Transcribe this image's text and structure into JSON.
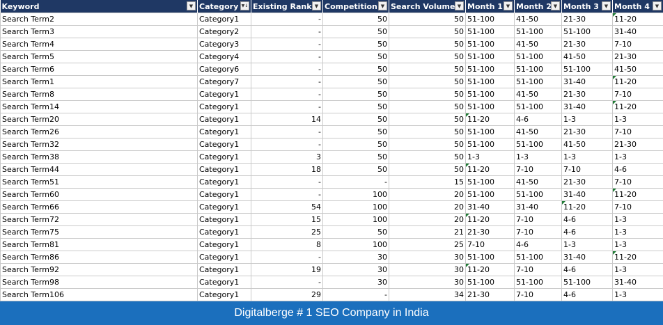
{
  "columns": [
    "Keyword",
    "Category",
    "Existing Rank",
    "Competition",
    "Search Volume",
    "Month 1",
    "Month 2",
    "Month 3",
    "Month 4"
  ],
  "numeric_columns": [
    2,
    3,
    4
  ],
  "sort_column": 1,
  "rows": [
    [
      "Search Term2",
      "Category1",
      "-",
      "50",
      "50",
      "51-100",
      "41-50",
      "21-30",
      "11-20"
    ],
    [
      "Search Term3",
      "Category2",
      "-",
      "50",
      "50",
      "51-100",
      "51-100",
      "51-100",
      "31-40"
    ],
    [
      "Search Term4",
      "Category3",
      "-",
      "50",
      "50",
      "51-100",
      "41-50",
      "21-30",
      "7-10"
    ],
    [
      "Search Term5",
      "Category4",
      "-",
      "50",
      "50",
      "51-100",
      "51-100",
      "41-50",
      " 21-30"
    ],
    [
      "Search Term6",
      "Category6",
      "-",
      "50",
      "50",
      "51-100",
      "51-100",
      "51-100",
      "41-50"
    ],
    [
      "Search Term1",
      "Category7",
      "-",
      "50",
      "50",
      "51-100",
      "51-100",
      "31-40",
      "11-20"
    ],
    [
      "Search Term8",
      "Category1",
      "-",
      "50",
      "50",
      "51-100",
      "41-50",
      "21-30",
      "7-10"
    ],
    [
      "Search Term14",
      "Category1",
      "-",
      "50",
      "50",
      "51-100",
      "51-100",
      "31-40",
      "11-20"
    ],
    [
      "Search Term20",
      "Category1",
      "14",
      "50",
      "50",
      "11-20",
      "4-6",
      "1-3",
      "1-3"
    ],
    [
      "Search Term26",
      "Category1",
      "-",
      "50",
      "50",
      "51-100",
      "41-50",
      "21-30",
      "7-10"
    ],
    [
      "Search Term32",
      "Category1",
      "-",
      "50",
      "50",
      "51-100",
      "51-100",
      "41-50",
      " 21-30"
    ],
    [
      "Search Term38",
      "Category1",
      "3",
      "50",
      "50",
      "1-3",
      "1-3",
      "1-3",
      "1-3"
    ],
    [
      "Search Term44",
      "Category1",
      "18",
      "50",
      "50",
      " 11-20",
      " 7-10",
      " 7-10",
      " 4-6"
    ],
    [
      "Search Term51",
      "Category1",
      "-",
      "-",
      "15",
      "51-100",
      "41-50",
      "21-30",
      "7-10"
    ],
    [
      "Search Term60",
      "Category1",
      "-",
      "100",
      "20",
      "51-100",
      "51-100",
      "31-40",
      "11-20"
    ],
    [
      "Search Term66",
      "Category1",
      "54",
      "100",
      "20",
      "31-40",
      "31-40",
      "11-20",
      "7-10"
    ],
    [
      "Search Term72",
      "Category1",
      "15",
      "100",
      "20",
      "11-20",
      "7-10",
      "4-6",
      "1-3"
    ],
    [
      "Search Term75",
      "Category1",
      "25",
      "50",
      "21",
      "21-30",
      "7-10",
      "4-6",
      "1-3"
    ],
    [
      "Search Term81",
      "Category1",
      "8",
      "100",
      "25",
      "7-10",
      "4-6",
      "1-3",
      "1-3"
    ],
    [
      "Search Term86",
      "Category1",
      "-",
      "30",
      "30",
      "51-100",
      "51-100",
      " 31-40",
      "11-20"
    ],
    [
      "Search Term92",
      "Category1",
      "19",
      "30",
      "30",
      "11-20",
      "7-10",
      "4-6",
      "1-3"
    ],
    [
      "Search Term98",
      "Category1",
      "-",
      "30",
      "30",
      "51-100",
      "51-100",
      "51-100",
      "31-40"
    ],
    [
      "Search Term106",
      "Category1",
      "29",
      "-",
      "34",
      "21-30",
      "7-10",
      "4-6",
      "1-3"
    ]
  ],
  "cell_markers": [
    [
      0,
      8
    ],
    [
      5,
      8
    ],
    [
      7,
      8
    ],
    [
      8,
      5
    ],
    [
      12,
      5
    ],
    [
      14,
      8
    ],
    [
      15,
      7
    ],
    [
      16,
      5
    ],
    [
      19,
      8
    ],
    [
      20,
      5
    ]
  ],
  "banner_text": "Digitalberge # 1 SEO Company in India"
}
